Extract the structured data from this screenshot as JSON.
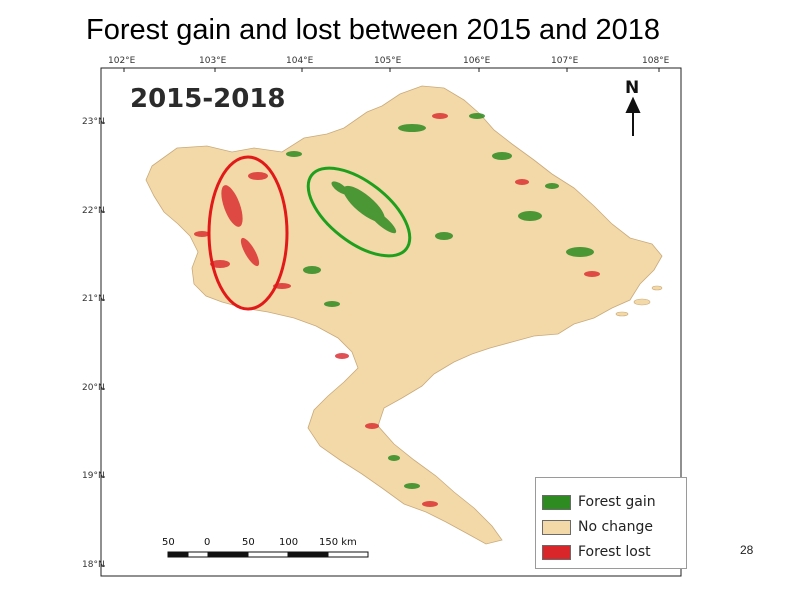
{
  "slide": {
    "title": "Forest gain and lost between 2015 and 2018",
    "page_number": "28"
  },
  "map": {
    "period_label": "2015-2018",
    "north_label": "N",
    "longitude_ticks": [
      "102°E",
      "103°E",
      "104°E",
      "105°E",
      "106°E",
      "107°E",
      "108°E"
    ],
    "latitude_ticks": [
      "23°N",
      "22°N",
      "21°N",
      "20°N",
      "19°N",
      "18°N"
    ],
    "scale_bar": {
      "labels": [
        "50",
        "0",
        "50",
        "100",
        "150 km"
      ]
    },
    "legend": [
      {
        "label": "Forest gain",
        "color": "#2e8b22"
      },
      {
        "label": "No change",
        "color": "#f3d9a8"
      },
      {
        "label": "Forest lost",
        "color": "#d9262b"
      }
    ],
    "annotations": [
      {
        "shape": "ellipse",
        "color": "#e11919",
        "meaning": "forest lost hotspot"
      },
      {
        "shape": "ellipse",
        "color": "#1ea01e",
        "meaning": "forest gain hotspot"
      }
    ],
    "colors": {
      "land": "#f3d9a8",
      "gain": "#2e8b22",
      "lost": "#d9262b"
    }
  }
}
